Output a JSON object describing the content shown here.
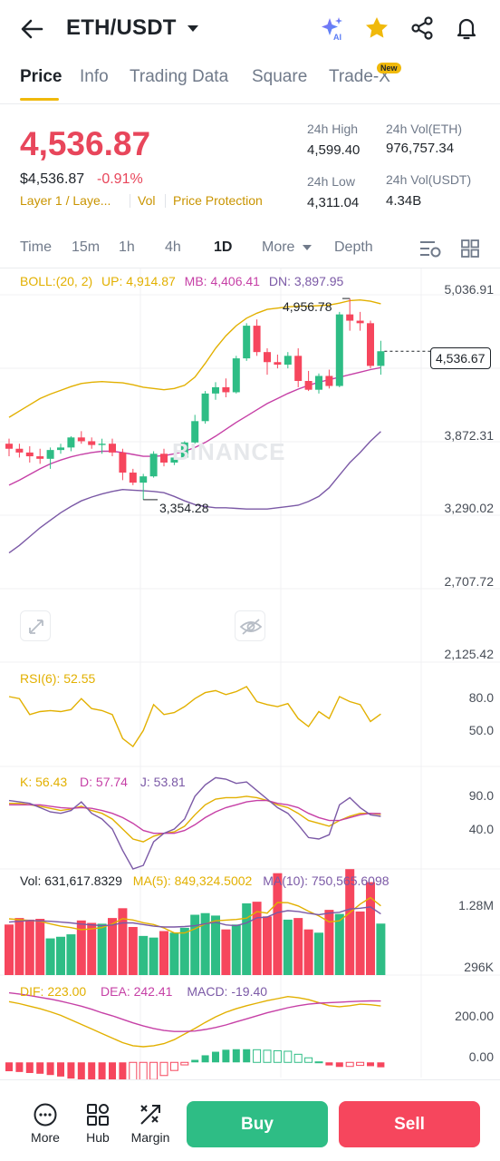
{
  "header": {
    "pair": "ETH/USDT",
    "icons": [
      "back-arrow-icon",
      "ai-sparkle-icon",
      "star-icon",
      "share-icon",
      "bell-icon"
    ],
    "ai_badge": "AI"
  },
  "tabs": [
    {
      "label": "Price",
      "active": true
    },
    {
      "label": "Info"
    },
    {
      "label": "Trading Data"
    },
    {
      "label": "Square"
    },
    {
      "label": "Trade-X",
      "badge": "New"
    }
  ],
  "price": {
    "last": "4,536.87",
    "usd": "$4,536.87",
    "change": "-0.91%",
    "tags": [
      "Layer 1 / Laye...",
      "Vol",
      "Price Protection"
    ]
  },
  "stats": {
    "high_label": "24h High",
    "high": "4,599.40",
    "low_label": "24h Low",
    "low": "4,311.04",
    "vol_eth_label": "24h Vol(ETH)",
    "vol_eth": "976,757.34",
    "vol_usdt_label": "24h Vol(USDT)",
    "vol_usdt": "4.34B"
  },
  "intervals": {
    "items": [
      "Time",
      "15m",
      "1h",
      "4h",
      "1D",
      "More",
      "Depth"
    ],
    "active": "1D"
  },
  "boll": {
    "label": "BOLL:(20, 2)",
    "up": "UP: 4,914.87",
    "mb": "MB: 4,406.41",
    "dn": "DN: 3,897.95"
  },
  "price_axis": [
    "5,036.91",
    "3,872.31",
    "3,290.02",
    "2,707.72",
    "2,125.42"
  ],
  "markers": {
    "current": "4,536.67",
    "high": "4,956.78",
    "low": "3,354.28"
  },
  "watermark": "BINANCE",
  "rsi": {
    "label": "RSI(6): 52.55",
    "axis": [
      "80.0",
      "50.0"
    ]
  },
  "kdj": {
    "k": "K: 56.43",
    "d": "D: 57.74",
    "j": "J: 53.81",
    "axis": [
      "90.0",
      "40.0"
    ]
  },
  "vol": {
    "label": "Vol: 631,617.8329",
    "ma5": "MA(5): 849,324.5002",
    "ma10": "MA(10): 750,565.6098",
    "axis": [
      "1.28M",
      "296K"
    ]
  },
  "macd": {
    "dif": "DIF: 223.00",
    "dea": "DEA: 242.41",
    "macd": "MACD: -19.40",
    "axis": [
      "200.00",
      "0.00"
    ]
  },
  "bottom": {
    "items": [
      {
        "label": "More",
        "icon": "more-dots-icon"
      },
      {
        "label": "Hub",
        "icon": "hub-grid-icon"
      },
      {
        "label": "Margin",
        "icon": "margin-arrows-icon"
      }
    ],
    "buy": "Buy",
    "sell": "Sell"
  },
  "colors": {
    "up": "#2ebd85",
    "down": "#f6465d",
    "boll_up": "#e2b000",
    "boll_mb": "#c640a6",
    "boll_dn": "#7b59a6",
    "accent": "#f0b90b"
  },
  "chart_data": {
    "type": "candlestick",
    "interval": "1D",
    "price_range": [
      2125.42,
      5036.91
    ],
    "candles": [
      {
        "o": 3800,
        "h": 3840,
        "l": 3700,
        "c": 3760
      },
      {
        "o": 3760,
        "h": 3800,
        "l": 3690,
        "c": 3730
      },
      {
        "o": 3730,
        "h": 3780,
        "l": 3650,
        "c": 3700
      },
      {
        "o": 3700,
        "h": 3760,
        "l": 3640,
        "c": 3680
      },
      {
        "o": 3680,
        "h": 3770,
        "l": 3600,
        "c": 3750
      },
      {
        "o": 3750,
        "h": 3800,
        "l": 3720,
        "c": 3770
      },
      {
        "o": 3770,
        "h": 3860,
        "l": 3740,
        "c": 3850
      },
      {
        "o": 3850,
        "h": 3900,
        "l": 3800,
        "c": 3820
      },
      {
        "o": 3820,
        "h": 3850,
        "l": 3760,
        "c": 3790
      },
      {
        "o": 3790,
        "h": 3840,
        "l": 3720,
        "c": 3800
      },
      {
        "o": 3800,
        "h": 3840,
        "l": 3700,
        "c": 3730
      },
      {
        "o": 3730,
        "h": 3760,
        "l": 3510,
        "c": 3570
      },
      {
        "o": 3570,
        "h": 3600,
        "l": 3470,
        "c": 3490
      },
      {
        "o": 3490,
        "h": 3560,
        "l": 3354.28,
        "c": 3540
      },
      {
        "o": 3540,
        "h": 3740,
        "l": 3530,
        "c": 3720
      },
      {
        "o": 3720,
        "h": 3760,
        "l": 3620,
        "c": 3650
      },
      {
        "o": 3650,
        "h": 3720,
        "l": 3630,
        "c": 3690
      },
      {
        "o": 3690,
        "h": 3820,
        "l": 3680,
        "c": 3810
      },
      {
        "o": 3810,
        "h": 4030,
        "l": 3800,
        "c": 3980
      },
      {
        "o": 3980,
        "h": 4220,
        "l": 3960,
        "c": 4200
      },
      {
        "o": 4200,
        "h": 4290,
        "l": 4150,
        "c": 4250
      },
      {
        "o": 4250,
        "h": 4320,
        "l": 4170,
        "c": 4210
      },
      {
        "o": 4210,
        "h": 4500,
        "l": 4200,
        "c": 4480
      },
      {
        "o": 4480,
        "h": 4760,
        "l": 4460,
        "c": 4740
      },
      {
        "o": 4740,
        "h": 4790,
        "l": 4500,
        "c": 4530
      },
      {
        "o": 4530,
        "h": 4560,
        "l": 4350,
        "c": 4450
      },
      {
        "o": 4450,
        "h": 4510,
        "l": 4400,
        "c": 4430
      },
      {
        "o": 4430,
        "h": 4530,
        "l": 4400,
        "c": 4500
      },
      {
        "o": 4500,
        "h": 4560,
        "l": 4250,
        "c": 4300
      },
      {
        "o": 4300,
        "h": 4380,
        "l": 4220,
        "c": 4230
      },
      {
        "o": 4230,
        "h": 4360,
        "l": 4200,
        "c": 4340
      },
      {
        "o": 4340,
        "h": 4390,
        "l": 4240,
        "c": 4260
      },
      {
        "o": 4260,
        "h": 4850,
        "l": 4250,
        "c": 4830
      },
      {
        "o": 4830,
        "h": 4956.78,
        "l": 4700,
        "c": 4780
      },
      {
        "o": 4780,
        "h": 4850,
        "l": 4700,
        "c": 4760
      },
      {
        "o": 4760,
        "h": 4780,
        "l": 4400,
        "c": 4420
      },
      {
        "o": 4420,
        "h": 4620,
        "l": 4350,
        "c": 4536.67
      }
    ],
    "boll_up": [
      4010,
      4060,
      4110,
      4160,
      4195,
      4225,
      4255,
      4280,
      4290,
      4295,
      4290,
      4285,
      4270,
      4250,
      4240,
      4230,
      4240,
      4265,
      4330,
      4440,
      4560,
      4660,
      4740,
      4800,
      4840,
      4870,
      4880,
      4890,
      4895,
      4895,
      4900,
      4905,
      4920,
      4940,
      4945,
      4935,
      4914.87
    ],
    "boll_mb": [
      3470,
      3510,
      3555,
      3600,
      3640,
      3670,
      3695,
      3715,
      3730,
      3740,
      3740,
      3730,
      3715,
      3700,
      3700,
      3705,
      3720,
      3740,
      3770,
      3810,
      3860,
      3915,
      3970,
      4020,
      4070,
      4120,
      4160,
      4200,
      4235,
      4265,
      4290,
      4310,
      4330,
      4350,
      4370,
      4390,
      4406.41
    ],
    "boll_dn": [
      2930,
      2990,
      3060,
      3130,
      3190,
      3250,
      3300,
      3345,
      3375,
      3400,
      3420,
      3435,
      3430,
      3425,
      3420,
      3410,
      3380,
      3345,
      3315,
      3300,
      3290,
      3290,
      3285,
      3280,
      3280,
      3280,
      3290,
      3300,
      3310,
      3340,
      3380,
      3450,
      3550,
      3650,
      3730,
      3820,
      3897.95
    ],
    "volume_range": [
      0,
      1280000
    ],
    "volume": [
      620000,
      700000,
      680000,
      690000,
      450000,
      470000,
      500000,
      670000,
      640000,
      630000,
      700000,
      820000,
      590000,
      480000,
      460000,
      540000,
      520000,
      580000,
      740000,
      760000,
      730000,
      560000,
      620000,
      880000,
      900000,
      720000,
      1250000,
      680000,
      700000,
      560000,
      520000,
      800000,
      750000,
      1300000,
      780000,
      1140000,
      631617.8329
    ],
    "vol_ma5": [
      690000,
      680000,
      670000,
      660000,
      628000,
      600000,
      582000,
      556000,
      566000,
      582000,
      628000,
      692000,
      676000,
      642000,
      620000,
      578000,
      518000,
      516000,
      568000,
      628000,
      666000,
      674000,
      682000,
      698000,
      778000,
      760000,
      890000,
      888000,
      848000,
      784000,
      726000,
      652000,
      666000,
      766000,
      870000,
      950000,
      849324.5
    ],
    "vol_ma10": [
      650000,
      660000,
      670000,
      665000,
      660000,
      650000,
      640000,
      625000,
      615000,
      606000,
      614000,
      640000,
      640000,
      620000,
      600000,
      590000,
      590000,
      595000,
      605000,
      630000,
      648000,
      615000,
      605000,
      640000,
      702000,
      712000,
      768000,
      790000,
      780000,
      758000,
      740000,
      760000,
      770000,
      810000,
      820000,
      836000,
      750565.61
    ],
    "rsi_range": [
      0,
      100
    ],
    "rsi": [
      70,
      68,
      52,
      55,
      56,
      55,
      57,
      68,
      58,
      56,
      52,
      28,
      20,
      36,
      62,
      52,
      54,
      60,
      68,
      74,
      76,
      72,
      75,
      80,
      65,
      62,
      60,
      63,
      48,
      40,
      55,
      48,
      70,
      65,
      62,
      45,
      52.55
    ],
    "kdj_range": [
      -20,
      120
    ],
    "k": [
      72,
      72,
      70,
      68,
      65,
      62,
      64,
      68,
      62,
      58,
      50,
      36,
      22,
      18,
      26,
      30,
      32,
      40,
      56,
      70,
      78,
      80,
      80,
      82,
      80,
      76,
      70,
      66,
      58,
      48,
      44,
      40,
      48,
      54,
      58,
      58,
      56.43
    ],
    "d": [
      70,
      70,
      70,
      70,
      68,
      66,
      65,
      66,
      65,
      62,
      58,
      52,
      44,
      34,
      30,
      30,
      30,
      34,
      42,
      52,
      60,
      66,
      70,
      74,
      76,
      76,
      72,
      70,
      66,
      58,
      52,
      48,
      48,
      52,
      56,
      58,
      57.74
    ],
    "j": [
      76,
      74,
      72,
      66,
      60,
      58,
      62,
      74,
      58,
      50,
      36,
      6,
      -20,
      -15,
      18,
      30,
      36,
      50,
      82,
      98,
      108,
      106,
      100,
      102,
      90,
      78,
      66,
      58,
      42,
      24,
      22,
      28,
      70,
      80,
      66,
      56,
      53.81
    ],
    "macd_range": [
      -60,
      320
    ],
    "dif": [
      240,
      232,
      222,
      212,
      200,
      186,
      168,
      150,
      132,
      114,
      96,
      78,
      66,
      62,
      66,
      74,
      90,
      112,
      134,
      158,
      180,
      198,
      212,
      224,
      234,
      244,
      252,
      260,
      256,
      248,
      236,
      224,
      220,
      224,
      230,
      228,
      223.0
    ],
    "dea": [
      275,
      270,
      264,
      257,
      250,
      242,
      232,
      222,
      210,
      196,
      184,
      170,
      156,
      144,
      134,
      126,
      122,
      122,
      124,
      130,
      138,
      148,
      160,
      172,
      184,
      196,
      206,
      216,
      224,
      230,
      234,
      236,
      238,
      240,
      242,
      243,
      242.41
    ],
    "macd": [
      -35,
      -38,
      -42,
      -45,
      -50,
      -56,
      -64,
      -72,
      -78,
      -82,
      -88,
      -92,
      -90,
      -82,
      -68,
      -52,
      -32,
      -10,
      10,
      28,
      42,
      50,
      52,
      52,
      50,
      48,
      46,
      44,
      32,
      18,
      2,
      -12,
      -18,
      -16,
      -12,
      -15,
      -19.4
    ]
  }
}
